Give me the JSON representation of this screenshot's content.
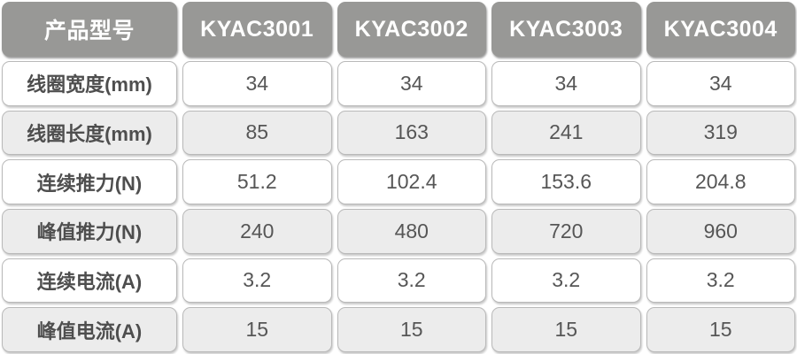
{
  "chart_data": {
    "type": "table",
    "title": "",
    "header_label": "产品型号",
    "columns": [
      "KYAC3001",
      "KYAC3002",
      "KYAC3003",
      "KYAC3004"
    ],
    "rows": [
      {
        "label": "线圈宽度(mm)",
        "values": [
          "34",
          "34",
          "34",
          "34"
        ]
      },
      {
        "label": "线圈长度(mm)",
        "values": [
          "85",
          "163",
          "241",
          "319"
        ]
      },
      {
        "label": "连续推力(N)",
        "values": [
          "51.2",
          "102.4",
          "153.6",
          "204.8"
        ]
      },
      {
        "label": "峰值推力(N)",
        "values": [
          "240",
          "480",
          "720",
          "960"
        ]
      },
      {
        "label": "连续电流(A)",
        "values": [
          "3.2",
          "3.2",
          "3.2",
          "3.2"
        ]
      },
      {
        "label": "峰值电流(A)",
        "values": [
          "15",
          "15",
          "15",
          "15"
        ]
      }
    ],
    "layout_hints": {
      "alternating_rows": true,
      "rounded_cells": true
    },
    "colors": {
      "header_bg": "#989896",
      "header_text": "#ffffff",
      "row_bg": "#ffffff",
      "row_alt_bg": "#ececec",
      "cell_border": "#b9b9b9",
      "value_text": "#565656",
      "label_text": "#4e4e4e"
    }
  }
}
